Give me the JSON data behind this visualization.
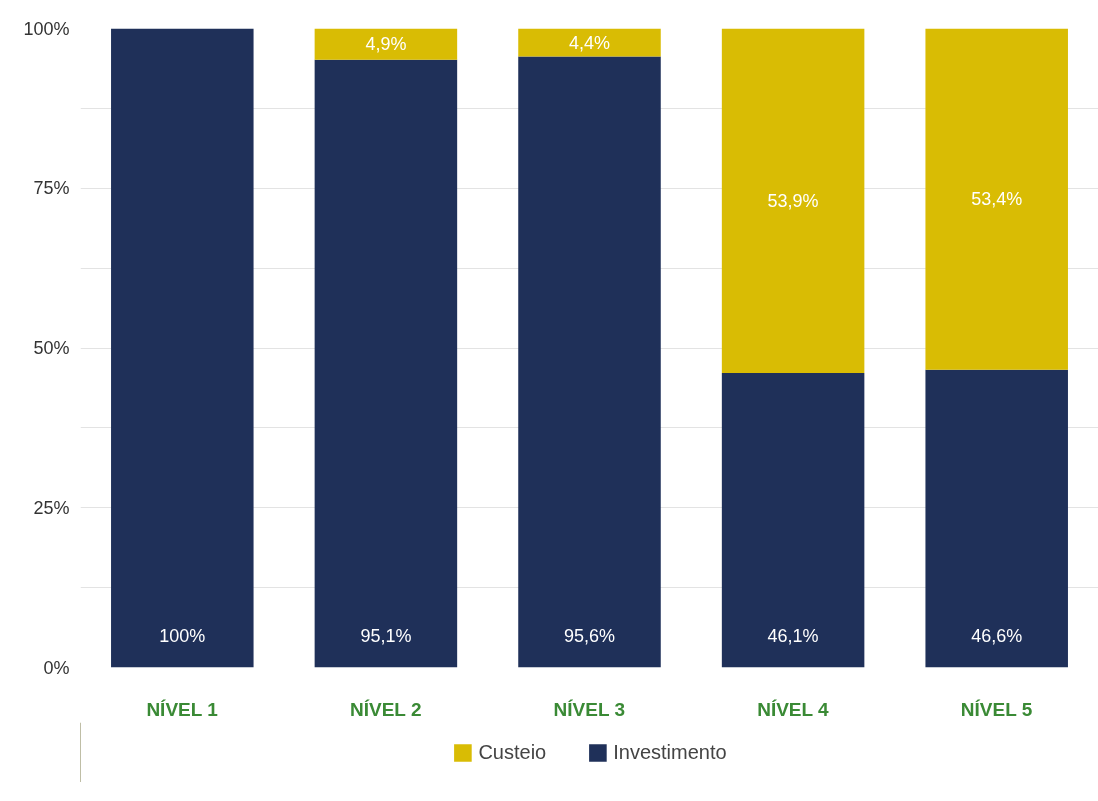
{
  "chart_data": {
    "type": "bar",
    "stacked": true,
    "categories": [
      "NÍVEL 1",
      "NÍVEL 2",
      "NÍVEL 3",
      "NÍVEL 4",
      "NÍVEL 5"
    ],
    "series": [
      {
        "name": "Investimento",
        "color": "#1f3059",
        "values": [
          100,
          95.1,
          95.6,
          46.1,
          46.6
        ],
        "value_labels": [
          "100%",
          "95,1%",
          "95,6%",
          "46,1%",
          "46,6%"
        ]
      },
      {
        "name": "Custeio",
        "color": "#d9bc04",
        "values": [
          null,
          4.9,
          4.4,
          53.9,
          53.4
        ],
        "value_labels": [
          null,
          "4,9%",
          "4,4%",
          "53,9%",
          "53,4%"
        ]
      }
    ],
    "ylim": [
      0,
      100
    ],
    "yticks": [
      {
        "value": 0,
        "label": "0%"
      },
      {
        "value": 12.5,
        "label": null
      },
      {
        "value": 25,
        "label": "25%"
      },
      {
        "value": 37.5,
        "label": null
      },
      {
        "value": 50,
        "label": "50%"
      },
      {
        "value": 62.5,
        "label": null
      },
      {
        "value": 75,
        "label": "75%"
      },
      {
        "value": 87.5,
        "label": null
      },
      {
        "value": 100,
        "label": "100%"
      }
    ],
    "grid": "y",
    "legend": "bottom"
  }
}
